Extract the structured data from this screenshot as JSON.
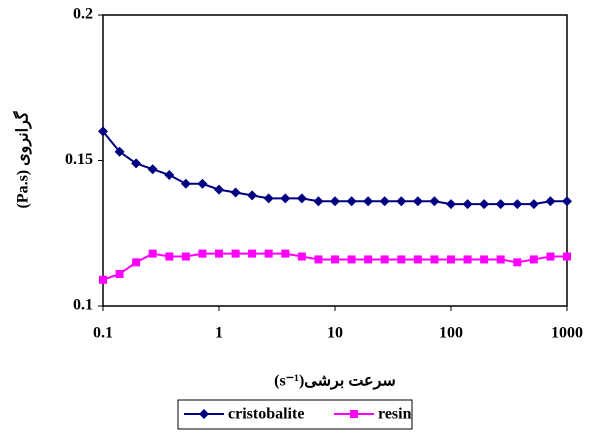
{
  "chart_data": {
    "type": "line",
    "ylabel": "گرانروی (Pa.s)",
    "xlabel": "سرعت برشی(s⁻¹)",
    "x": [
      0.1,
      0.139,
      0.193,
      0.268,
      0.373,
      0.518,
      0.72,
      1,
      1.39,
      1.93,
      2.68,
      3.73,
      5.18,
      7.2,
      10,
      13.9,
      19.3,
      26.8,
      37.3,
      51.8,
      72,
      100,
      139,
      193,
      268,
      373,
      518,
      720,
      1000
    ],
    "series": [
      {
        "name": "cristobalite",
        "color": "#000080",
        "marker": "diamond",
        "values": [
          0.16,
          0.153,
          0.149,
          0.147,
          0.145,
          0.142,
          0.142,
          0.14,
          0.139,
          0.138,
          0.137,
          0.137,
          0.137,
          0.136,
          0.136,
          0.136,
          0.136,
          0.136,
          0.136,
          0.136,
          0.136,
          0.135,
          0.135,
          0.135,
          0.135,
          0.135,
          0.135,
          0.136,
          0.136
        ]
      },
      {
        "name": "resin",
        "color": "#ff00ff",
        "marker": "square",
        "values": [
          0.109,
          0.111,
          0.115,
          0.118,
          0.117,
          0.117,
          0.118,
          0.118,
          0.118,
          0.118,
          0.118,
          0.118,
          0.117,
          0.116,
          0.116,
          0.116,
          0.116,
          0.116,
          0.116,
          0.116,
          0.116,
          0.116,
          0.116,
          0.116,
          0.116,
          0.115,
          0.116,
          0.117,
          0.117
        ]
      }
    ],
    "xlim": [
      0.1,
      1000
    ],
    "xticks": [
      0.1,
      1,
      10,
      100,
      1000
    ],
    "xscale": "log",
    "ylim": [
      0.1,
      0.2
    ],
    "yticks": [
      0.1,
      0.15,
      0.2
    ],
    "legend": "bottom"
  }
}
